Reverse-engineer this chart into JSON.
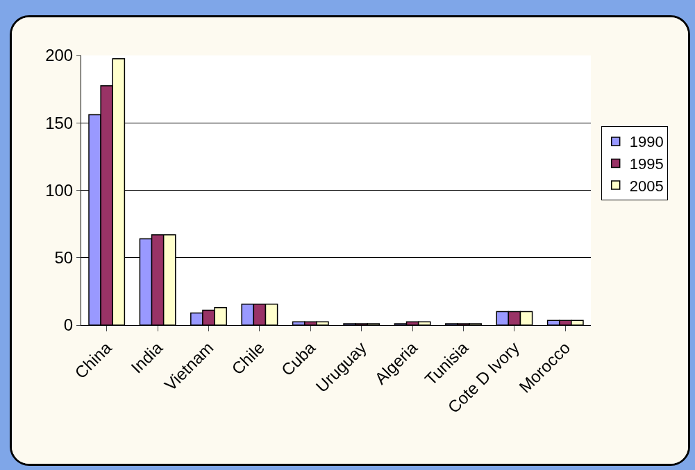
{
  "chart_data": {
    "type": "bar",
    "categories": [
      "China",
      "India",
      "Vietnam",
      "Chile",
      "Cuba",
      "Uruguay",
      "Algeria",
      "Tunisia",
      "Cote D Ivory",
      "Morocco"
    ],
    "series": [
      {
        "name": "1990",
        "color": "#9999ff",
        "values": [
          156,
          64,
          9,
          15.5,
          2.5,
          1,
          1,
          1,
          10,
          3.5
        ]
      },
      {
        "name": "1995",
        "color": "#993366",
        "values": [
          177.5,
          67,
          11,
          15.5,
          2.5,
          1,
          2.5,
          1,
          10,
          3.5
        ]
      },
      {
        "name": "2005",
        "color": "#ffffcc",
        "values": [
          197.5,
          67,
          13,
          15.5,
          2.5,
          1,
          2.5,
          1,
          10,
          3.5
        ]
      }
    ],
    "ylim": [
      0,
      200
    ],
    "yticks": [
      0,
      50,
      100,
      150,
      200
    ],
    "grid": "y",
    "legend": "right"
  }
}
